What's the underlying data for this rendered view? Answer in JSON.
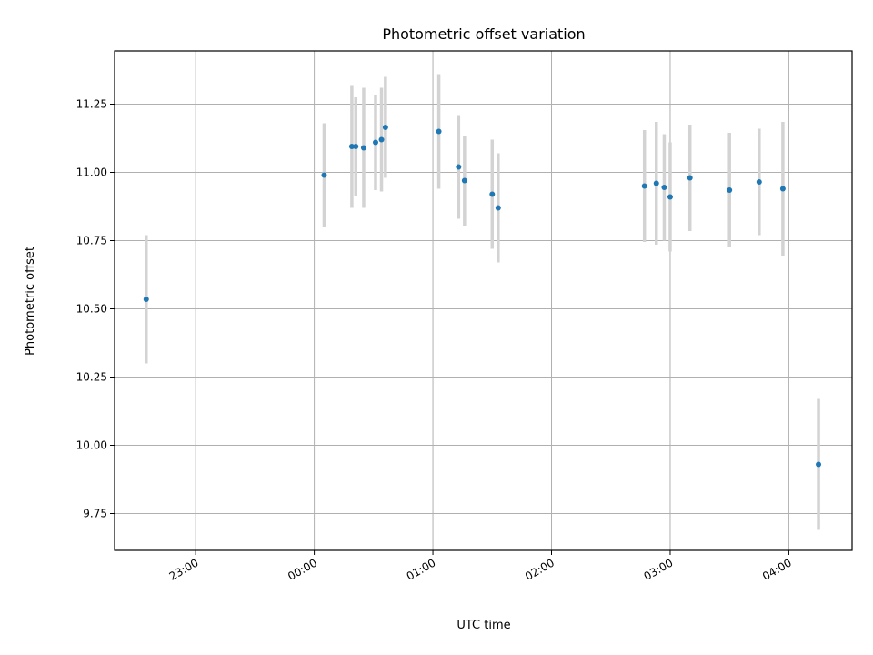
{
  "chart_data": {
    "type": "scatter",
    "title": "Photometric offset variation",
    "xlabel": "UTC time",
    "ylabel": "Photometric offset",
    "x_ticks": [
      "23:00",
      "00:00",
      "01:00",
      "02:00",
      "03:00",
      "04:00"
    ],
    "y_ticks": [
      "9.75",
      "10.00",
      "10.25",
      "10.50",
      "10.75",
      "11.00",
      "11.25"
    ],
    "xlim": [
      "22:19",
      "04:32"
    ],
    "ylim": [
      9.615,
      11.445
    ],
    "grid": true,
    "error_bar_color": "#d3d3d3",
    "marker_color": "#1f77b4",
    "series": [
      {
        "points": [
          {
            "x": "22:35",
            "y": 10.535,
            "err": 0.235
          },
          {
            "x": "00:05",
            "y": 10.99,
            "err": 0.19
          },
          {
            "x": "00:19",
            "y": 11.095,
            "err": 0.225
          },
          {
            "x": "00:21",
            "y": 11.095,
            "err": 0.18
          },
          {
            "x": "00:25",
            "y": 11.09,
            "err": 0.22
          },
          {
            "x": "00:31",
            "y": 11.11,
            "err": 0.175
          },
          {
            "x": "00:34",
            "y": 11.12,
            "err": 0.19
          },
          {
            "x": "00:36",
            "y": 11.165,
            "err": 0.185
          },
          {
            "x": "01:03",
            "y": 11.15,
            "err": 0.21
          },
          {
            "x": "01:13",
            "y": 11.02,
            "err": 0.19
          },
          {
            "x": "01:16",
            "y": 10.97,
            "err": 0.165
          },
          {
            "x": "01:30",
            "y": 10.92,
            "err": 0.2
          },
          {
            "x": "01:33",
            "y": 10.87,
            "err": 0.2
          },
          {
            "x": "02:47",
            "y": 10.95,
            "err": 0.205
          },
          {
            "x": "02:53",
            "y": 10.96,
            "err": 0.225
          },
          {
            "x": "02:57",
            "y": 10.945,
            "err": 0.195
          },
          {
            "x": "03:00",
            "y": 10.91,
            "err": 0.2
          },
          {
            "x": "03:10",
            "y": 10.98,
            "err": 0.195
          },
          {
            "x": "03:30",
            "y": 10.935,
            "err": 0.21
          },
          {
            "x": "03:45",
            "y": 10.965,
            "err": 0.195
          },
          {
            "x": "03:57",
            "y": 10.94,
            "err": 0.245
          },
          {
            "x": "04:15",
            "y": 9.93,
            "err": 0.24
          }
        ]
      }
    ]
  }
}
